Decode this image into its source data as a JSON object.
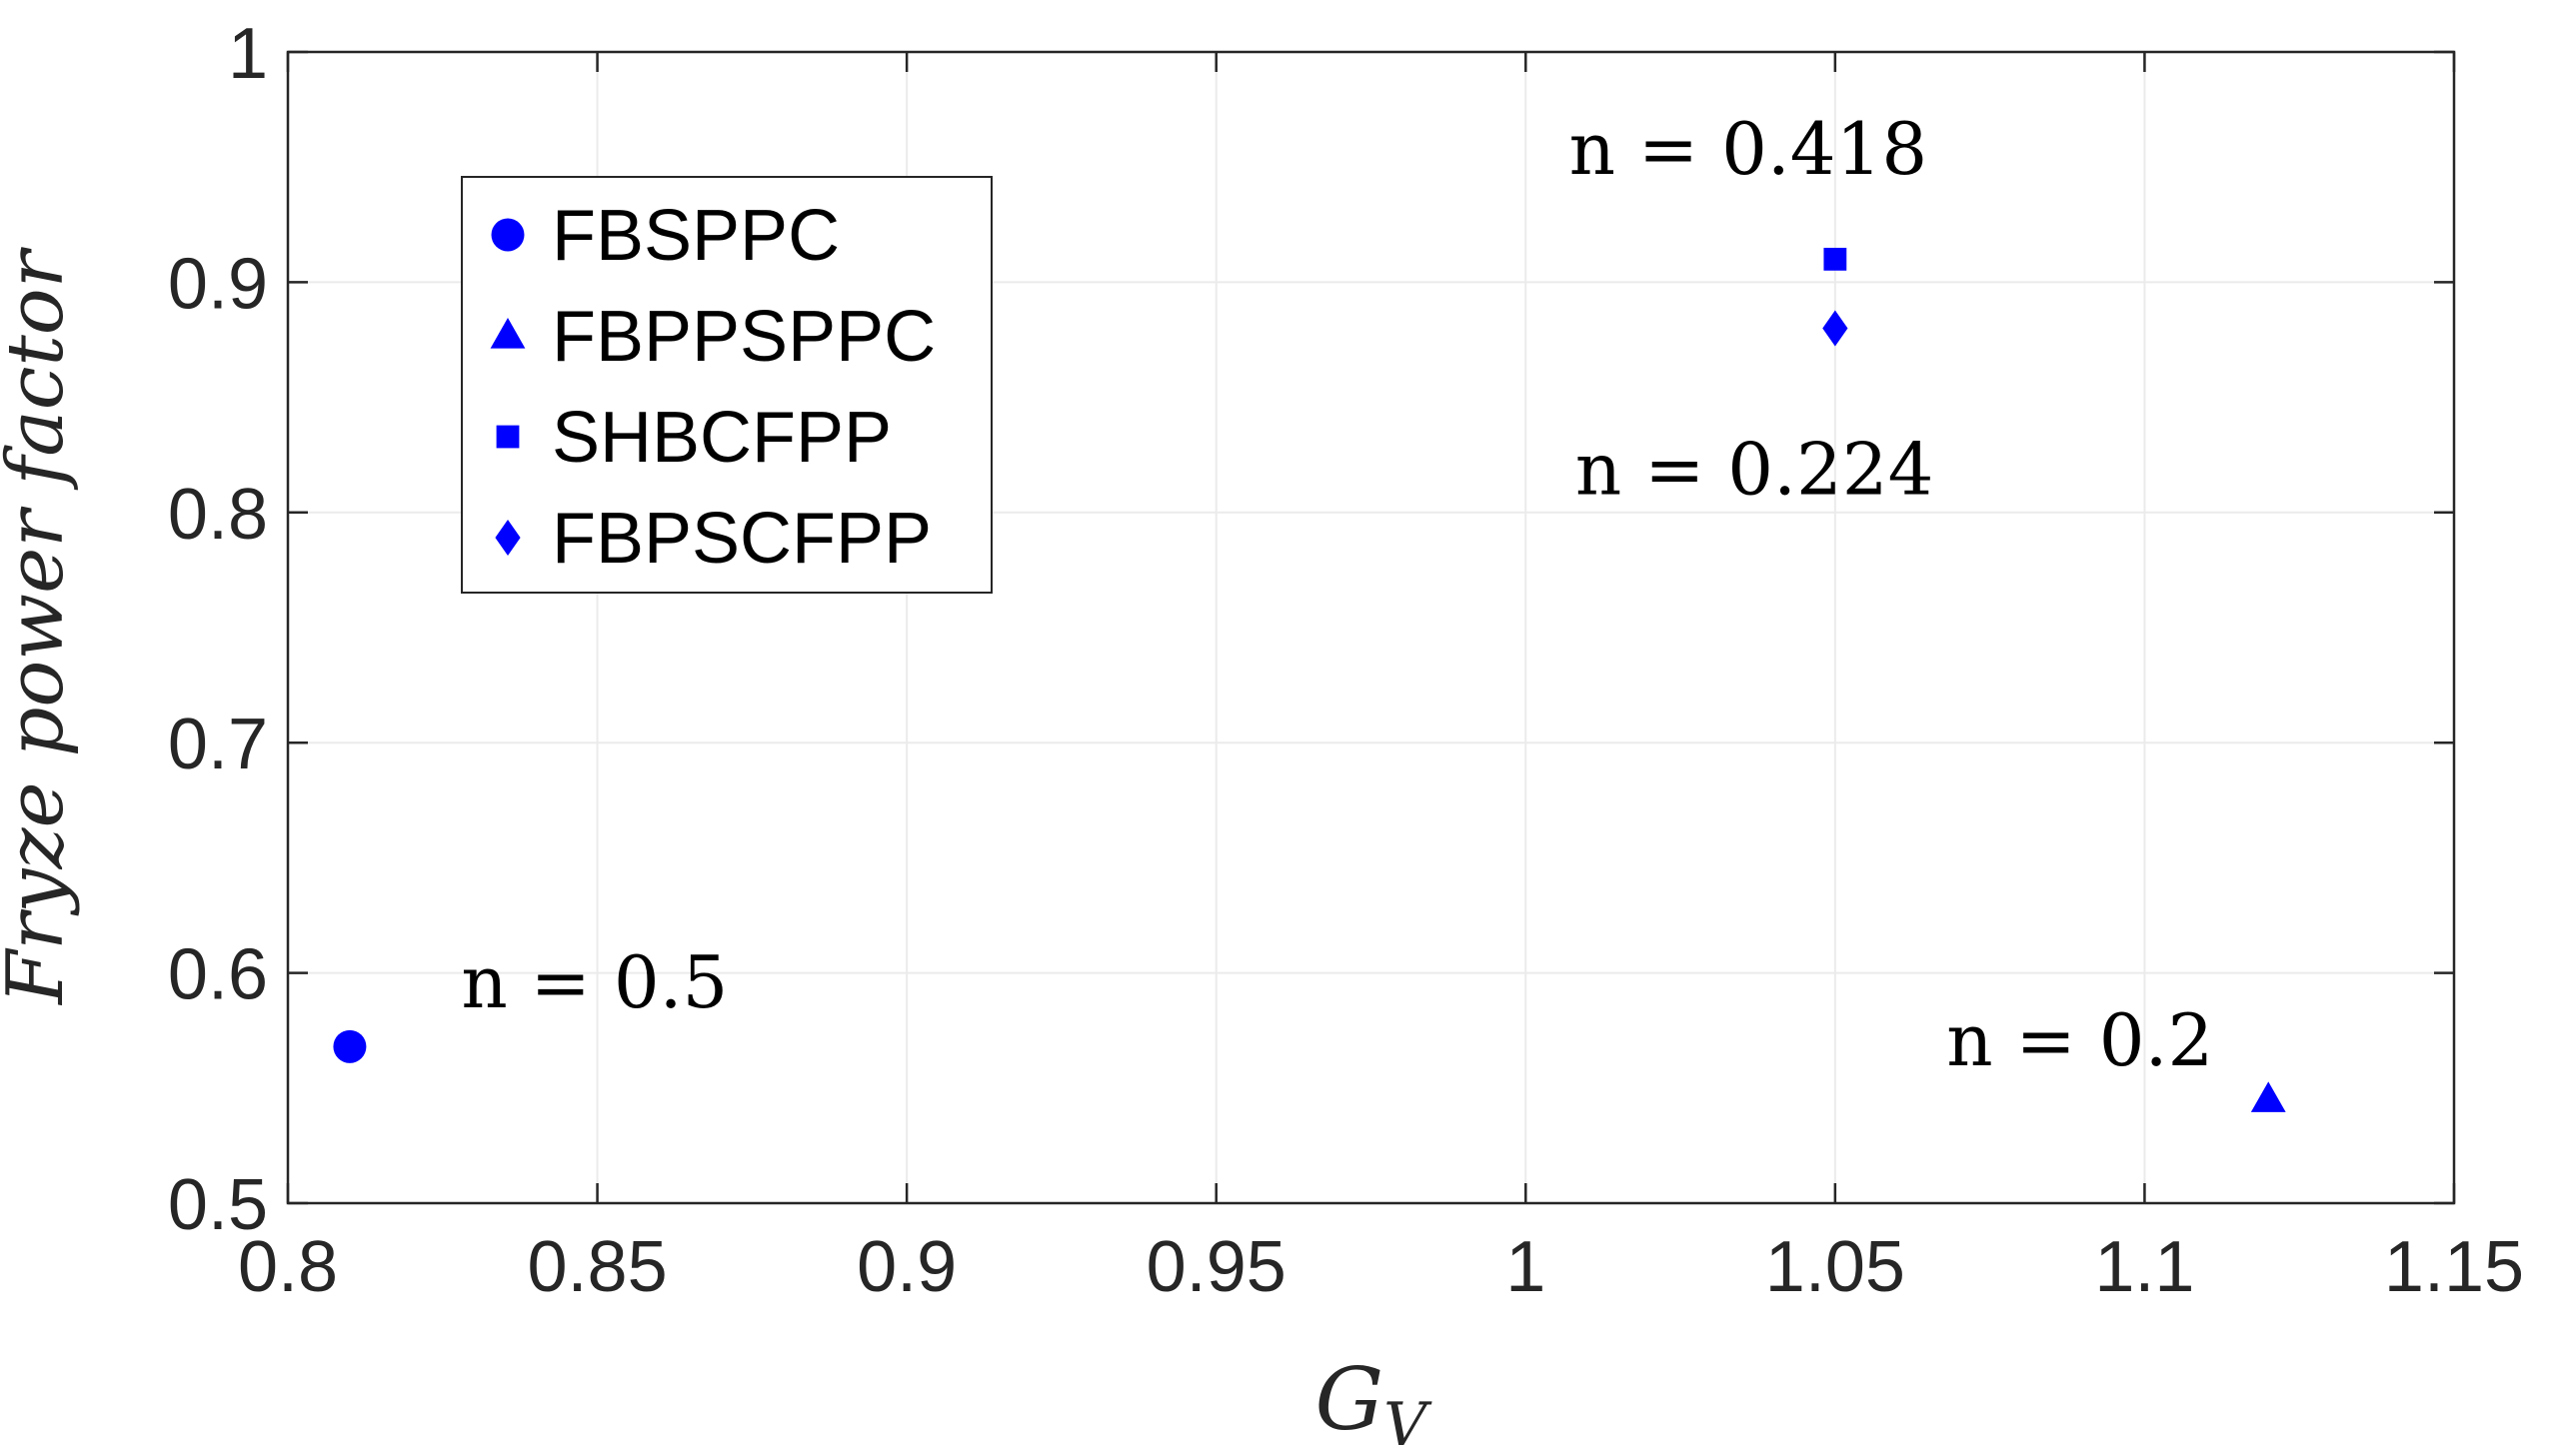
{
  "chart_data": {
    "type": "scatter",
    "xlabel": "G_V",
    "ylabel": "Fryze power factor",
    "xlim": [
      0.8,
      1.15
    ],
    "ylim": [
      0.5,
      1
    ],
    "grid": true,
    "legend_position": "top-left",
    "x_tick_labels": [
      "0.8",
      "0.85",
      "0.9",
      "0.95",
      "1",
      "1.05",
      "1.1",
      "1.15"
    ],
    "y_tick_labels": [
      "0.5",
      "0.6",
      "0.7",
      "0.8",
      "0.9",
      "1"
    ],
    "series": [
      {
        "name": "FBSPPC",
        "marker": "circle",
        "color": "#0000ff",
        "points": [
          {
            "x": 0.81,
            "y": 0.568
          }
        ]
      },
      {
        "name": "FBPPSPPC",
        "marker": "triangle",
        "color": "#0000ff",
        "points": [
          {
            "x": 1.12,
            "y": 0.545
          }
        ]
      },
      {
        "name": "SHBCFPP",
        "marker": "square",
        "color": "#0000ff",
        "points": [
          {
            "x": 1.05,
            "y": 0.91
          }
        ]
      },
      {
        "name": "FBPSCFPP",
        "marker": "diamond",
        "color": "#0000ff",
        "points": [
          {
            "x": 1.05,
            "y": 0.88
          }
        ]
      }
    ],
    "annotations": [
      {
        "text": "n = 0.5",
        "x": 0.828,
        "y": 0.585
      },
      {
        "text": "n = 0.418",
        "x": 1.007,
        "y": 0.947
      },
      {
        "text": "n = 0.224",
        "x": 1.008,
        "y": 0.808
      },
      {
        "text": "n = 0.2",
        "x": 1.068,
        "y": 0.56
      }
    ]
  }
}
